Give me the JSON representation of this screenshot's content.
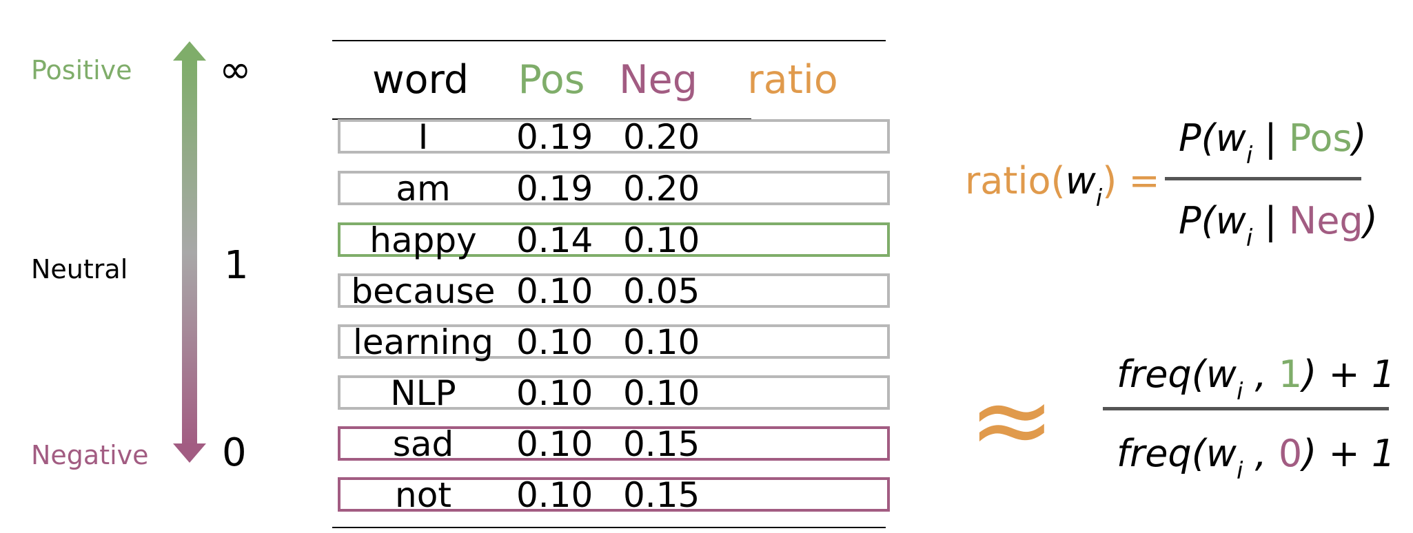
{
  "colors": {
    "positive": "#7fad6a",
    "negative": "#a25c82",
    "ratio": "#e09a4c",
    "neutral_border": "#b8b8b8",
    "fraction_bar": "#555555"
  },
  "scale": {
    "positive_label": "Positive",
    "neutral_label": "Neutral",
    "negative_label": "Negative",
    "top_value": "∞",
    "mid_value": "1",
    "bottom_value": "0"
  },
  "table": {
    "headers": {
      "word": "word",
      "pos": "Pos",
      "neg": "Neg",
      "ratio": "ratio"
    },
    "rows": [
      {
        "word": "I",
        "pos": "0.19",
        "neg": "0.20",
        "highlight": "none"
      },
      {
        "word": "am",
        "pos": "0.19",
        "neg": "0.20",
        "highlight": "none"
      },
      {
        "word": "happy",
        "pos": "0.14",
        "neg": "0.10",
        "highlight": "positive"
      },
      {
        "word": "because",
        "pos": "0.10",
        "neg": "0.05",
        "highlight": "none"
      },
      {
        "word": "learning",
        "pos": "0.10",
        "neg": "0.10",
        "highlight": "none"
      },
      {
        "word": "NLP",
        "pos": "0.10",
        "neg": "0.10",
        "highlight": "none"
      },
      {
        "word": "sad",
        "pos": "0.10",
        "neg": "0.15",
        "highlight": "negative"
      },
      {
        "word": "not",
        "pos": "0.10",
        "neg": "0.15",
        "highlight": "negative"
      }
    ]
  },
  "formula_ratio": {
    "lhs_name": "ratio(",
    "lhs_var": "w",
    "sub": "i",
    "lhs_close": ")",
    "equals": "=",
    "num_prefix": "P(",
    "num_var": "w",
    "num_bar": " | ",
    "num_class": "Pos",
    "num_close": ")",
    "den_prefix": "P(",
    "den_var": "w",
    "den_bar": " | ",
    "den_class": "Neg",
    "den_close": ")"
  },
  "formula_freq": {
    "approx": "≈",
    "num_prefix": "freq(",
    "num_var": "w",
    "num_sep": " , ",
    "num_class": "1",
    "num_suffix": ") + 1",
    "den_prefix": "freq(",
    "den_var": "w",
    "den_sep": " , ",
    "den_class": "0",
    "den_suffix": ") + 1",
    "sub": "i"
  }
}
